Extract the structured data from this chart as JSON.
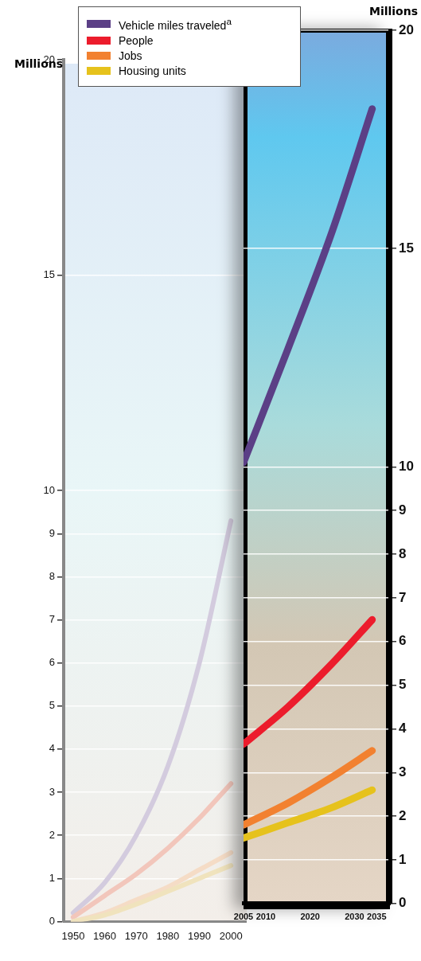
{
  "chart_data": [
    {
      "type": "line",
      "ylabel": "Millions",
      "x": [
        1950,
        1960,
        1970,
        1980,
        1990,
        2000
      ],
      "xlim": [
        1947,
        2005
      ],
      "xticks": [
        1950,
        1960,
        1970,
        1980,
        1990,
        2000
      ],
      "ylim": [
        0,
        20
      ],
      "yticks": [
        0,
        1,
        2,
        3,
        4,
        5,
        6,
        7,
        8,
        9,
        10,
        15,
        20
      ],
      "grid": "y",
      "marker": "none",
      "series": [
        {
          "color": "#d3cbde",
          "values": [
            0.2,
            0.9,
            2.0,
            3.6,
            6.0,
            9.3
          ]
        },
        {
          "color": "#f2c6bb",
          "values": [
            0.1,
            0.6,
            1.1,
            1.7,
            2.4,
            3.2
          ]
        },
        {
          "color": "#f5dcc6",
          "values": [
            0.0,
            0.2,
            0.5,
            0.8,
            1.2,
            1.6
          ]
        },
        {
          "color": "#f0e3bd",
          "values": [
            0.0,
            0.15,
            0.4,
            0.7,
            1.0,
            1.3
          ]
        }
      ]
    },
    {
      "type": "line",
      "ylabel": "Millions",
      "x": [
        2005,
        2015,
        2025,
        2034
      ],
      "xlim": [
        2005,
        2038
      ],
      "xticks": [
        2005,
        2010,
        2020,
        2030,
        2035
      ],
      "ylim": [
        0,
        20
      ],
      "yticks": [
        0,
        1,
        2,
        3,
        4,
        5,
        6,
        7,
        8,
        9,
        10,
        15,
        20
      ],
      "grid": "y",
      "legend": "top",
      "marker": "none",
      "series": [
        {
          "name": "Vehicle miles traveled$^{a}$",
          "color": "#5b3f86",
          "values": [
            10.1,
            12.7,
            15.4,
            18.2
          ]
        },
        {
          "name": "People",
          "color": "#ec1c2c",
          "values": [
            3.65,
            4.5,
            5.5,
            6.5
          ]
        },
        {
          "name": "Jobs",
          "color": "#f28130",
          "values": [
            1.8,
            2.3,
            2.9,
            3.5
          ]
        },
        {
          "name": "Housing units",
          "color": "#e6c21c",
          "values": [
            1.5,
            1.85,
            2.2,
            2.6
          ]
        }
      ]
    }
  ]
}
